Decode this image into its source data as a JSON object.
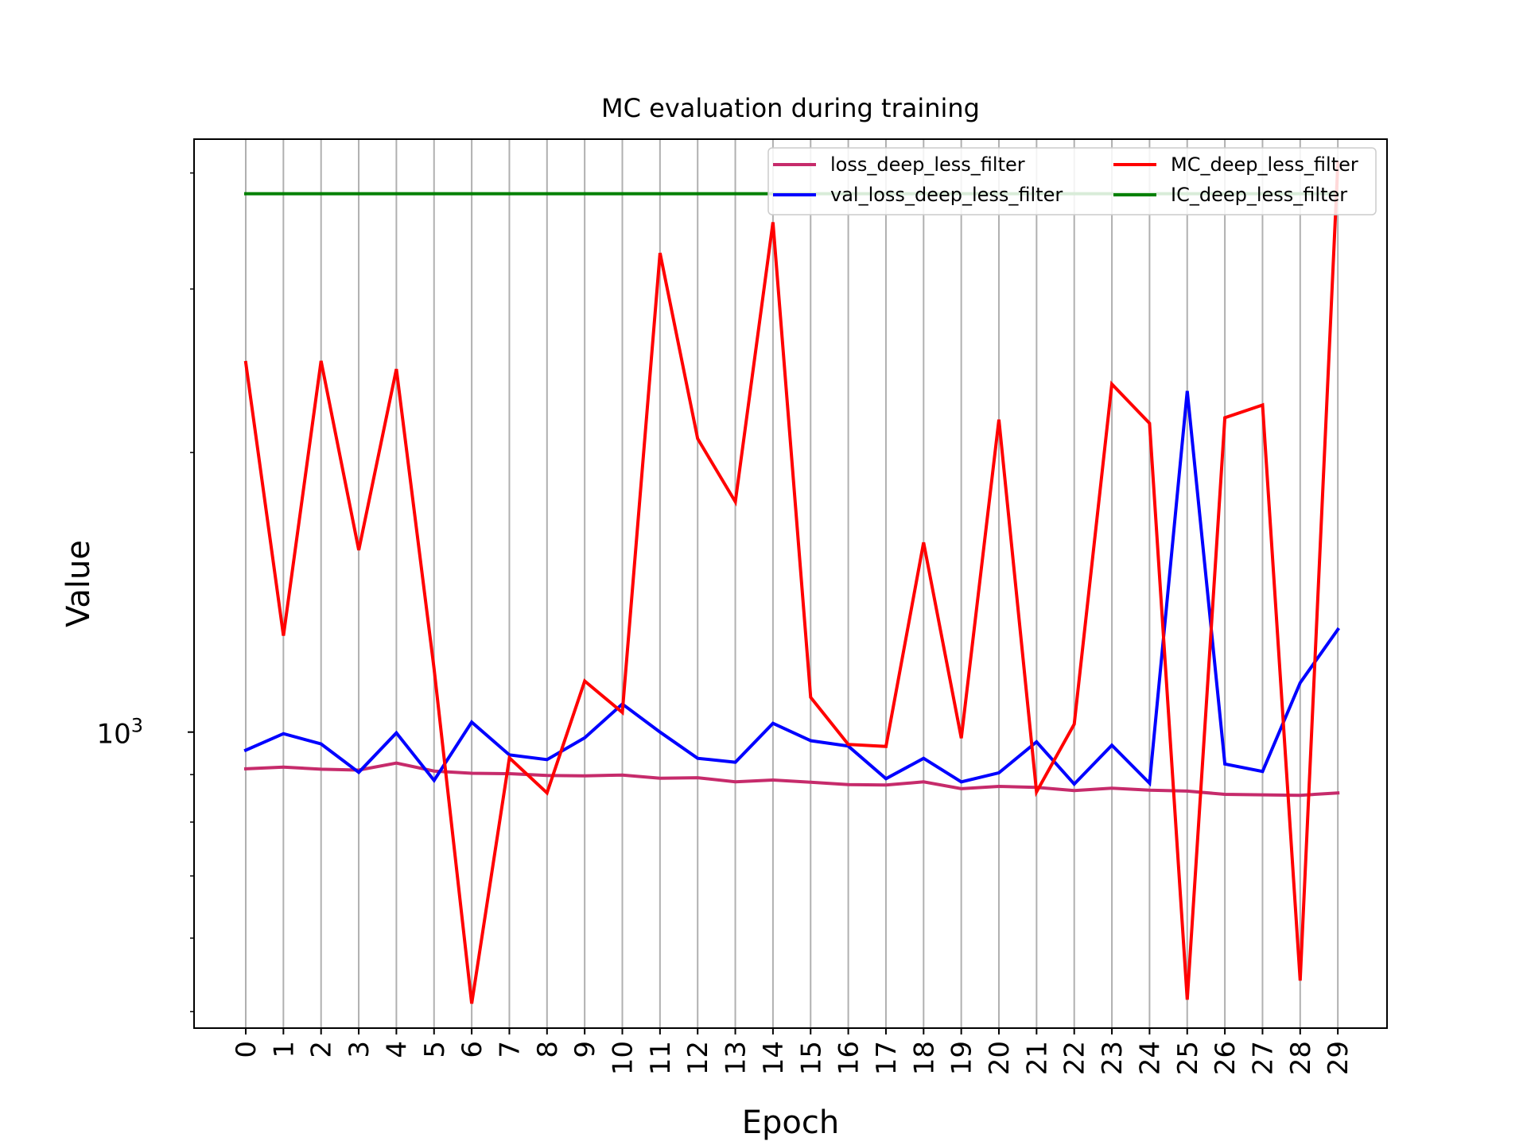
{
  "chart_data": {
    "type": "line",
    "title": "MC evaluation during training",
    "xlabel": "Epoch",
    "ylabel": "Value",
    "yscale": "log",
    "ylim": [
      480,
      4350
    ],
    "y_tick_label": {
      "base": "10",
      "exp": "3",
      "value": 1000
    },
    "x": [
      0,
      1,
      2,
      3,
      4,
      5,
      6,
      7,
      8,
      9,
      10,
      11,
      12,
      13,
      14,
      15,
      16,
      17,
      18,
      19,
      20,
      21,
      22,
      23,
      24,
      25,
      26,
      27,
      28,
      29
    ],
    "x_tick_labels": [
      "0",
      "1",
      "2",
      "3",
      "4",
      "5",
      "6",
      "7",
      "8",
      "9",
      "10",
      "11",
      "12",
      "13",
      "14",
      "15",
      "16",
      "17",
      "18",
      "19",
      "20",
      "21",
      "22",
      "23",
      "24",
      "25",
      "26",
      "27",
      "28",
      "29"
    ],
    "grid": "vertical",
    "legend_position": "top-right",
    "series": [
      {
        "name": "loss_deep_less_filter",
        "color": "#c62b6b",
        "values": [
          913,
          917,
          912,
          910,
          926,
          908,
          903,
          902,
          898,
          897,
          899,
          892,
          893,
          884,
          888,
          883,
          878,
          877,
          884,
          869,
          874,
          872,
          865,
          870,
          866,
          864,
          857,
          856,
          855,
          860
        ]
      },
      {
        "name": "val_loss_deep_less_filter",
        "color": "#0000ff",
        "values": [
          956,
          996,
          971,
          905,
          998,
          887,
          1025,
          945,
          934,
          986,
          1072,
          1000,
          937,
          928,
          1022,
          979,
          966,
          891,
          937,
          884,
          904,
          976,
          879,
          968,
          881,
          2330,
          924,
          907,
          1130,
          1290
        ]
      },
      {
        "name": "MC_deep_less_filter",
        "color": "#ff0000",
        "values": [
          2500,
          1270,
          2510,
          1570,
          2460,
          1170,
          510,
          938,
          860,
          1135,
          1050,
          3280,
          2070,
          1770,
          3540,
          1090,
          970,
          965,
          1600,
          985,
          2170,
          862,
          1020,
          2370,
          2150,
          515,
          2180,
          2250,
          540,
          4100
        ]
      },
      {
        "name": "IC_deep_less_filter",
        "color": "#008000",
        "values": [
          3800,
          3800,
          3800,
          3800,
          3800,
          3800,
          3800,
          3800,
          3800,
          3800,
          3800,
          3800,
          3800,
          3800,
          3800,
          3800,
          3800,
          3800,
          3800,
          3800,
          3800,
          3800,
          3800,
          3800,
          3800,
          3800,
          3800,
          3800,
          3800,
          3800
        ]
      }
    ]
  }
}
